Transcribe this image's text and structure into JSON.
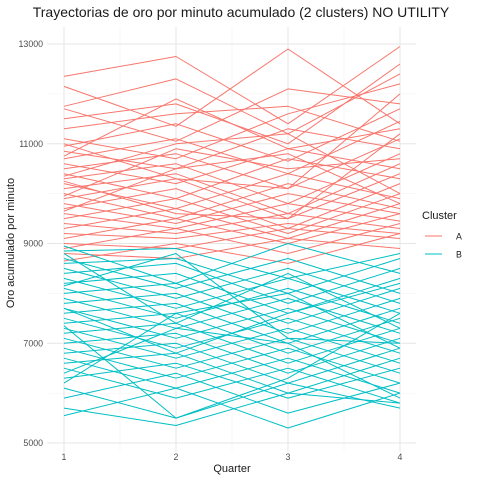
{
  "chart_data": {
    "type": "line",
    "title": "Trayectorias de oro por minuto acumulado (2 clusters) NO UTILITY",
    "xlabel": "Quarter",
    "ylabel": "Oro acumulado por minuto",
    "x": [
      1,
      2,
      3,
      4
    ],
    "x_ticks": [
      "1",
      "2",
      "3",
      "4"
    ],
    "y_ticks": [
      "5000",
      "7000",
      "9000",
      "11000",
      "13000"
    ],
    "ylim": [
      5000,
      13000
    ],
    "grid": true,
    "legend": {
      "title": "Cluster",
      "position": "right",
      "entries": [
        {
          "label": "A",
          "color": "#F8766D"
        },
        {
          "label": "B",
          "color": "#00BFC4"
        }
      ]
    },
    "series": [
      {
        "cluster": "A",
        "values": [
          12350,
          12750,
          11400,
          12950
        ]
      },
      {
        "cluster": "A",
        "values": [
          12150,
          11350,
          12900,
          11400
        ]
      },
      {
        "cluster": "A",
        "values": [
          11750,
          12300,
          11200,
          12400
        ]
      },
      {
        "cluster": "A",
        "values": [
          11700,
          11050,
          12100,
          11800
        ]
      },
      {
        "cluster": "A",
        "values": [
          11500,
          11800,
          11000,
          12600
        ]
      },
      {
        "cluster": "A",
        "values": [
          11300,
          11600,
          11750,
          11050
        ]
      },
      {
        "cluster": "A",
        "values": [
          11100,
          10700,
          11600,
          12200
        ]
      },
      {
        "cluster": "A",
        "values": [
          10950,
          11400,
          10650,
          11700
        ]
      },
      {
        "cluster": "A",
        "values": [
          10850,
          10500,
          11300,
          10900
        ]
      },
      {
        "cluster": "A",
        "values": [
          10700,
          11100,
          10400,
          11450
        ]
      },
      {
        "cluster": "A",
        "values": [
          10600,
          10200,
          10900,
          10500
        ]
      },
      {
        "cluster": "A",
        "values": [
          10500,
          10800,
          10100,
          11100
        ]
      },
      {
        "cluster": "A",
        "values": [
          10400,
          9900,
          10700,
          10300
        ]
      },
      {
        "cluster": "A",
        "values": [
          10300,
          10600,
          9800,
          10800
        ]
      },
      {
        "cluster": "A",
        "values": [
          10200,
          9700,
          10400,
          9900
        ]
      },
      {
        "cluster": "A",
        "values": [
          10100,
          10400,
          9600,
          10600
        ]
      },
      {
        "cluster": "A",
        "values": [
          10000,
          9500,
          10200,
          9700
        ]
      },
      {
        "cluster": "A",
        "values": [
          9900,
          10300,
          9500,
          10400
        ]
      },
      {
        "cluster": "A",
        "values": [
          9800,
          9400,
          10000,
          9600
        ]
      },
      {
        "cluster": "A",
        "values": [
          9700,
          10100,
          9300,
          10200
        ]
      },
      {
        "cluster": "A",
        "values": [
          9600,
          9300,
          9800,
          9450
        ]
      },
      {
        "cluster": "A",
        "values": [
          9500,
          9900,
          9200,
          10000
        ]
      },
      {
        "cluster": "A",
        "values": [
          9400,
          9200,
          9600,
          9300
        ]
      },
      {
        "cluster": "A",
        "values": [
          9300,
          9700,
          9100,
          9800
        ]
      },
      {
        "cluster": "A",
        "values": [
          9200,
          9100,
          9400,
          9200
        ]
      },
      {
        "cluster": "A",
        "values": [
          9100,
          9500,
          9000,
          9600
        ]
      },
      {
        "cluster": "A",
        "values": [
          9000,
          8900,
          9300,
          9100
        ]
      },
      {
        "cluster": "A",
        "values": [
          8900,
          9300,
          8800,
          9400
        ]
      },
      {
        "cluster": "A",
        "values": [
          8800,
          8700,
          9100,
          8900
        ]
      },
      {
        "cluster": "A",
        "values": [
          8650,
          9000,
          8600,
          9200
        ]
      },
      {
        "cluster": "A",
        "values": [
          10750,
          11900,
          10900,
          11300
        ]
      },
      {
        "cluster": "A",
        "values": [
          11000,
          10300,
          10100,
          12000
        ]
      },
      {
        "cluster": "A",
        "values": [
          10350,
          11000,
          11200,
          10000
        ]
      },
      {
        "cluster": "A",
        "values": [
          9950,
          10900,
          10500,
          10700
        ]
      },
      {
        "cluster": "A",
        "values": [
          10250,
          9600,
          9500,
          11200
        ]
      },
      {
        "cluster": "A",
        "values": [
          9650,
          10500,
          10800,
          9800
        ]
      },
      {
        "cluster": "B",
        "values": [
          8950,
          8200,
          9000,
          8400
        ]
      },
      {
        "cluster": "B",
        "values": [
          8850,
          8900,
          8300,
          8800
        ]
      },
      {
        "cluster": "B",
        "values": [
          8700,
          8100,
          8700,
          8000
        ]
      },
      {
        "cluster": "B",
        "values": [
          8600,
          8700,
          8000,
          8700
        ]
      },
      {
        "cluster": "B",
        "values": [
          8500,
          7900,
          8500,
          7800
        ]
      },
      {
        "cluster": "B",
        "values": [
          8400,
          8600,
          7800,
          8500
        ]
      },
      {
        "cluster": "B",
        "values": [
          8300,
          7700,
          8300,
          7600
        ]
      },
      {
        "cluster": "B",
        "values": [
          8200,
          8400,
          7600,
          8300
        ]
      },
      {
        "cluster": "B",
        "values": [
          8100,
          7500,
          8100,
          7400
        ]
      },
      {
        "cluster": "B",
        "values": [
          8000,
          8200,
          7400,
          8100
        ]
      },
      {
        "cluster": "B",
        "values": [
          7900,
          7300,
          7900,
          7200
        ]
      },
      {
        "cluster": "B",
        "values": [
          7800,
          8000,
          7200,
          7900
        ]
      },
      {
        "cluster": "B",
        "values": [
          7700,
          7100,
          7700,
          7000
        ]
      },
      {
        "cluster": "B",
        "values": [
          7600,
          7800,
          7000,
          7700
        ]
      },
      {
        "cluster": "B",
        "values": [
          7500,
          6900,
          7500,
          6800
        ]
      },
      {
        "cluster": "B",
        "values": [
          7400,
          7600,
          6800,
          7500
        ]
      },
      {
        "cluster": "B",
        "values": [
          7300,
          6700,
          7300,
          6600
        ]
      },
      {
        "cluster": "B",
        "values": [
          7200,
          7400,
          6600,
          7300
        ]
      },
      {
        "cluster": "B",
        "values": [
          7100,
          6500,
          7100,
          6400
        ]
      },
      {
        "cluster": "B",
        "values": [
          7000,
          7200,
          6400,
          7100
        ]
      },
      {
        "cluster": "B",
        "values": [
          6900,
          6300,
          6900,
          6200
        ]
      },
      {
        "cluster": "B",
        "values": [
          6800,
          7000,
          6200,
          6900
        ]
      },
      {
        "cluster": "B",
        "values": [
          6700,
          6100,
          6700,
          6000
        ]
      },
      {
        "cluster": "B",
        "values": [
          6600,
          6800,
          6000,
          6700
        ]
      },
      {
        "cluster": "B",
        "values": [
          6500,
          5900,
          6500,
          5800
        ]
      },
      {
        "cluster": "B",
        "values": [
          6300,
          6600,
          5900,
          6500
        ]
      },
      {
        "cluster": "B",
        "values": [
          6100,
          5500,
          6200,
          5700
        ]
      },
      {
        "cluster": "B",
        "values": [
          5900,
          6400,
          5600,
          6200
        ]
      },
      {
        "cluster": "B",
        "values": [
          5700,
          5350,
          6000,
          5800
        ]
      },
      {
        "cluster": "B",
        "values": [
          5550,
          6100,
          5300,
          6000
        ]
      },
      {
        "cluster": "B",
        "values": [
          7700,
          6800,
          7600,
          8200
        ]
      },
      {
        "cluster": "B",
        "values": [
          8800,
          7400,
          8400,
          7300
        ]
      },
      {
        "cluster": "B",
        "values": [
          6400,
          7300,
          7000,
          5900
        ]
      },
      {
        "cluster": "B",
        "values": [
          7350,
          5500,
          6300,
          7600
        ]
      },
      {
        "cluster": "B",
        "values": [
          8150,
          8800,
          7100,
          7000
        ]
      },
      {
        "cluster": "B",
        "values": [
          6200,
          7600,
          8000,
          6900
        ]
      }
    ]
  }
}
